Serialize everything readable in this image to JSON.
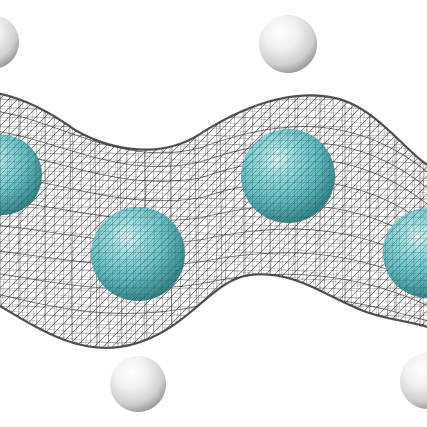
{
  "scene": {
    "background": "#ffffff",
    "mesh_color": "#2a2a2a",
    "carbon_color": "#6fc9cc",
    "hydrogen_color": "#f2f2f2",
    "carbon_count": 4,
    "hydrogen_count": 4
  }
}
